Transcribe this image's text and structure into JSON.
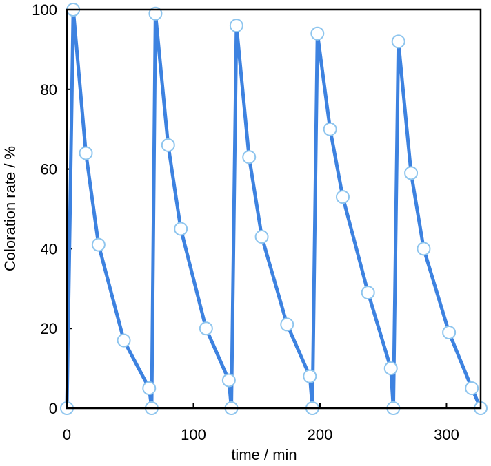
{
  "chart_data": {
    "type": "line",
    "title": "",
    "xlabel": "time / min",
    "ylabel": "Coloration rate / %",
    "xlim": [
      0,
      327
    ],
    "ylim": [
      0,
      100
    ],
    "xticks": [
      0,
      100,
      200,
      300
    ],
    "yticks": [
      0,
      20,
      40,
      60,
      80,
      100
    ],
    "grid": false,
    "legend": "none",
    "line_color": "#3d82e0",
    "marker_fill": "#ffffff",
    "marker_stroke": "#8ec5ee",
    "series": [
      {
        "points": [
          [
            0,
            0
          ],
          [
            5,
            100
          ],
          [
            15,
            64
          ],
          [
            25,
            41
          ],
          [
            45,
            17
          ],
          [
            65,
            5
          ],
          [
            67,
            0
          ],
          [
            70,
            99
          ],
          [
            80,
            66
          ],
          [
            90,
            45
          ],
          [
            110,
            20
          ],
          [
            128,
            7
          ],
          [
            130,
            0
          ],
          [
            134,
            96
          ],
          [
            144,
            63
          ],
          [
            154,
            43
          ],
          [
            174,
            21
          ],
          [
            192,
            8
          ],
          [
            194,
            0
          ],
          [
            198,
            94
          ],
          [
            208,
            70
          ],
          [
            218,
            53
          ],
          [
            238,
            29
          ],
          [
            256,
            10
          ],
          [
            258,
            0
          ],
          [
            262,
            92
          ],
          [
            272,
            59
          ],
          [
            282,
            40
          ],
          [
            302,
            19
          ],
          [
            320,
            5
          ],
          [
            327,
            0
          ]
        ]
      }
    ]
  }
}
